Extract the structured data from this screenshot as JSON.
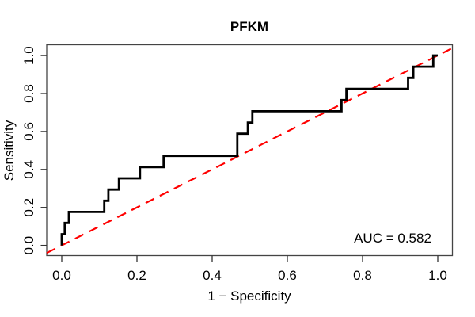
{
  "figure": {
    "title": "PFKM",
    "auc_label": "AUC = 0.582"
  },
  "chart_data": {
    "type": "line",
    "subtype": "roc-step-curve",
    "title": "PFKM",
    "xlabel": "1 − Specificity",
    "ylabel": "Sensitivity",
    "xlim": [
      0.0,
      1.0
    ],
    "ylim": [
      0.0,
      1.0
    ],
    "grid": false,
    "legend": "none",
    "x_ticks": [
      0.0,
      0.2,
      0.4,
      0.6,
      0.8,
      1.0
    ],
    "x_tick_labels": [
      "0.0",
      "0.2",
      "0.4",
      "0.6",
      "0.8",
      "1.0"
    ],
    "y_ticks": [
      0.0,
      0.2,
      0.4,
      0.6,
      0.8,
      1.0
    ],
    "y_tick_labels": [
      "0.0",
      "0.2",
      "0.4",
      "0.6",
      "0.8",
      "1.0"
    ],
    "series": [
      {
        "name": "ROC curve",
        "color": "#000000",
        "style": "solid",
        "points": [
          [
            0.0,
            0.0
          ],
          [
            0.0,
            0.059
          ],
          [
            0.008,
            0.059
          ],
          [
            0.008,
            0.118
          ],
          [
            0.019,
            0.118
          ],
          [
            0.019,
            0.176
          ],
          [
            0.113,
            0.176
          ],
          [
            0.113,
            0.235
          ],
          [
            0.124,
            0.235
          ],
          [
            0.124,
            0.294
          ],
          [
            0.152,
            0.294
          ],
          [
            0.152,
            0.353
          ],
          [
            0.208,
            0.353
          ],
          [
            0.208,
            0.412
          ],
          [
            0.271,
            0.412
          ],
          [
            0.271,
            0.471
          ],
          [
            0.467,
            0.471
          ],
          [
            0.467,
            0.588
          ],
          [
            0.495,
            0.588
          ],
          [
            0.495,
            0.647
          ],
          [
            0.507,
            0.647
          ],
          [
            0.507,
            0.706
          ],
          [
            0.744,
            0.706
          ],
          [
            0.744,
            0.765
          ],
          [
            0.757,
            0.765
          ],
          [
            0.757,
            0.824
          ],
          [
            0.921,
            0.824
          ],
          [
            0.921,
            0.882
          ],
          [
            0.935,
            0.882
          ],
          [
            0.935,
            0.941
          ],
          [
            0.988,
            0.941
          ],
          [
            0.988,
            1.0
          ],
          [
            1.0,
            1.0
          ]
        ]
      },
      {
        "name": "Chance diagonal",
        "color": "#FF0000",
        "style": "dashed",
        "points": [
          [
            0.0,
            0.0
          ],
          [
            1.0,
            1.0
          ]
        ]
      }
    ],
    "annotations": [
      {
        "text": "AUC = 0.582",
        "x": 0.88,
        "y": 0.015
      }
    ],
    "auc": 0.582
  }
}
